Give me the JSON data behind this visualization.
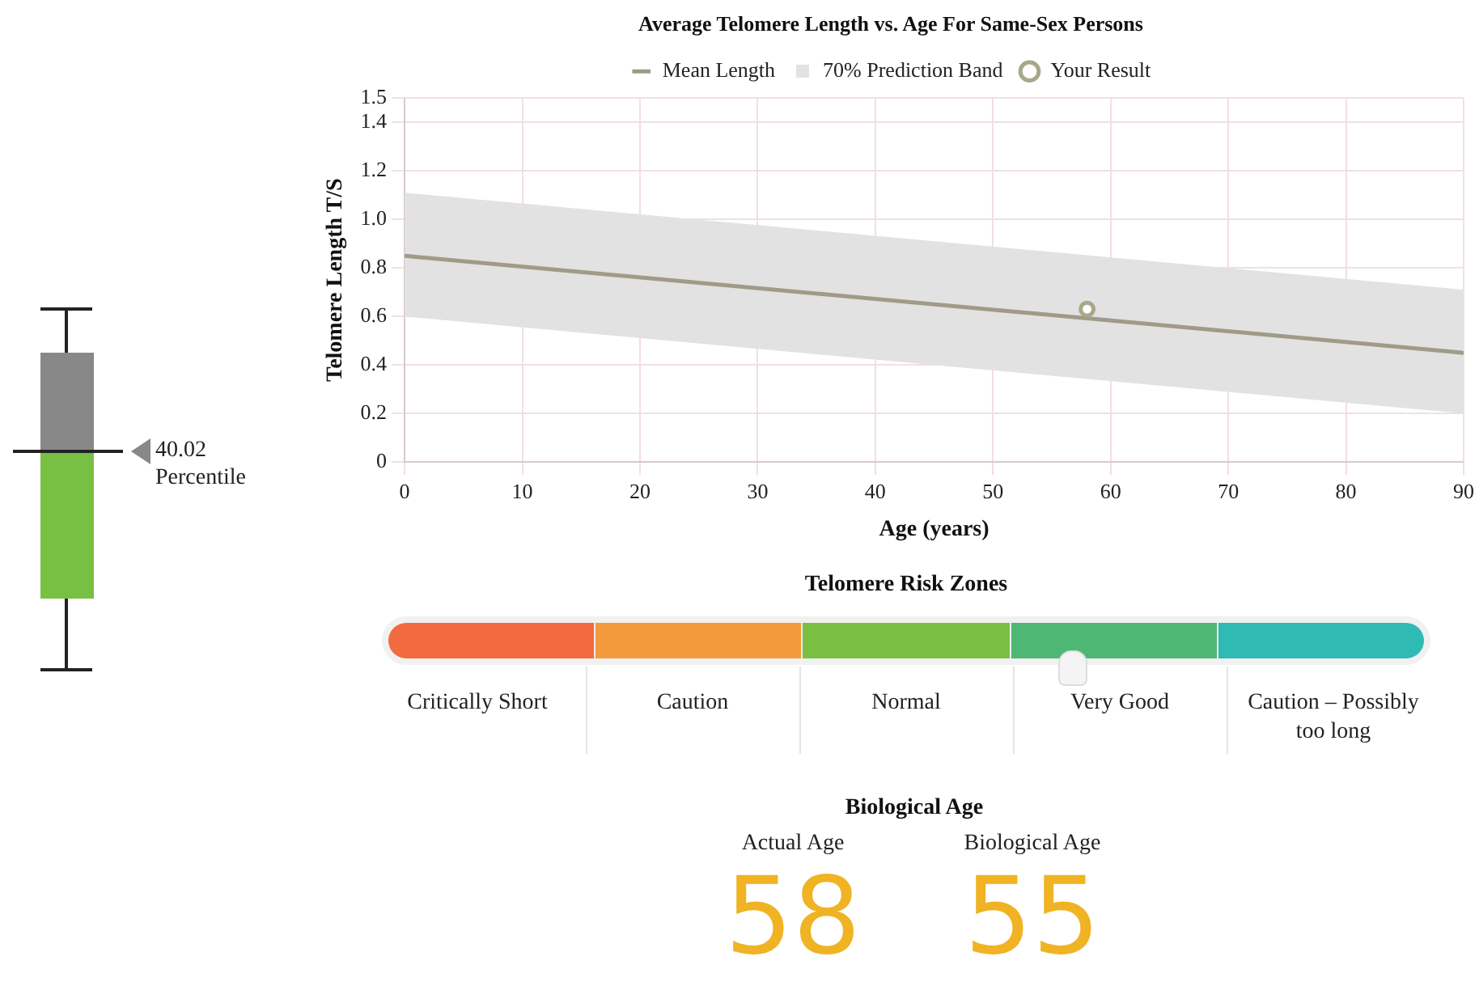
{
  "chart_data": [
    {
      "type": "line",
      "title": "Average Telomere Length vs. Age For Same-Sex Persons",
      "xlabel": "Age (years)",
      "ylabel": "Telomere Length T/S",
      "x": [
        0,
        90
      ],
      "series": [
        {
          "name": "Mean Length",
          "color": "#a09a88",
          "values": [
            0.85,
            0.45
          ],
          "lower": [
            0.6,
            0.2
          ],
          "upper": [
            1.11,
            0.71
          ]
        },
        {
          "name": "Your Result",
          "type": "scatter",
          "color": "#a8a888",
          "marker": "circle",
          "x": [
            58
          ],
          "values": [
            0.63
          ]
        }
      ],
      "xlim": [
        0,
        90
      ],
      "xticks": [
        0,
        10,
        20,
        30,
        40,
        50,
        60,
        70,
        80,
        90
      ],
      "ylim": [
        0,
        1.5
      ],
      "yticks": [
        0,
        0.2,
        0.4,
        0.6,
        0.8,
        {
          "value": 1,
          "label": "1.0"
        },
        1.2,
        1.4,
        1.5
      ],
      "annotations": [
        "70% Prediction Band"
      ],
      "grid": true,
      "legend": "top"
    },
    {
      "type": "other",
      "annotations": [
        "40.02 Percentile"
      ]
    },
    {
      "type": "other",
      "title": "Telomere Risk Zones",
      "categories": [
        "Critically Short",
        "Caution",
        "Normal",
        "Very Good",
        "Caution – Possibly too long"
      ],
      "colors": [
        "#f26a3f",
        "#f39a3d",
        "#79c043",
        "#4fb774",
        "#2fbab4"
      ]
    },
    {
      "type": "other",
      "title": "Biological Age",
      "categories": [
        "Actual Age",
        "Biological Age"
      ],
      "values": [
        58,
        55
      ],
      "color": "#f0b323",
      "data_labels": true
    }
  ]
}
